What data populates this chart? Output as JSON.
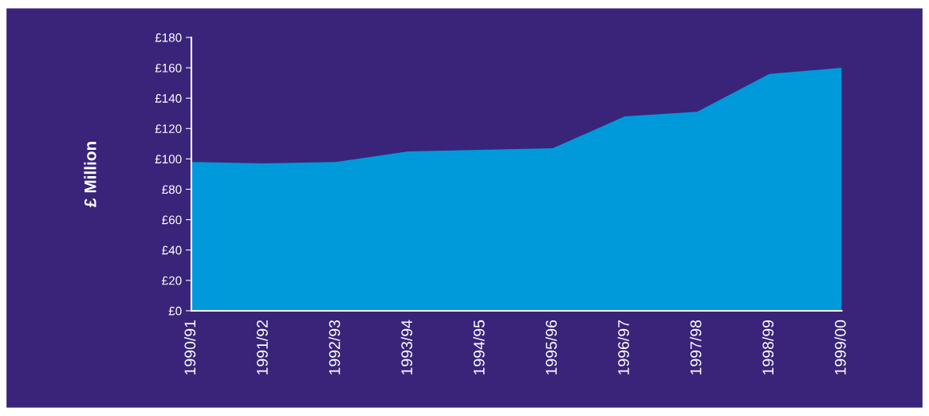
{
  "chart_data": {
    "type": "area",
    "ylabel": "£ Million",
    "categories": [
      "1990/91",
      "1991/92",
      "1992/93",
      "1993/94",
      "1994/95",
      "1995/96",
      "1996/97",
      "1997/98",
      "1998/99",
      "1999/00"
    ],
    "values": [
      98,
      97,
      98,
      105,
      106,
      107,
      128,
      131,
      156,
      160
    ],
    "color": "#0099d9",
    "ylim": [
      0,
      180
    ],
    "yticks": [
      {
        "value": 0,
        "label": "£0"
      },
      {
        "value": 20,
        "label": "£20"
      },
      {
        "value": 40,
        "label": "£40"
      },
      {
        "value": 60,
        "label": "£60"
      },
      {
        "value": 80,
        "label": "£80"
      },
      {
        "value": 100,
        "label": "£100"
      },
      {
        "value": 120,
        "label": "£120"
      },
      {
        "value": 140,
        "label": "£140"
      },
      {
        "value": 160,
        "label": "£160"
      },
      {
        "value": 180,
        "label": "£180"
      }
    ],
    "grid": false,
    "legend": false
  }
}
